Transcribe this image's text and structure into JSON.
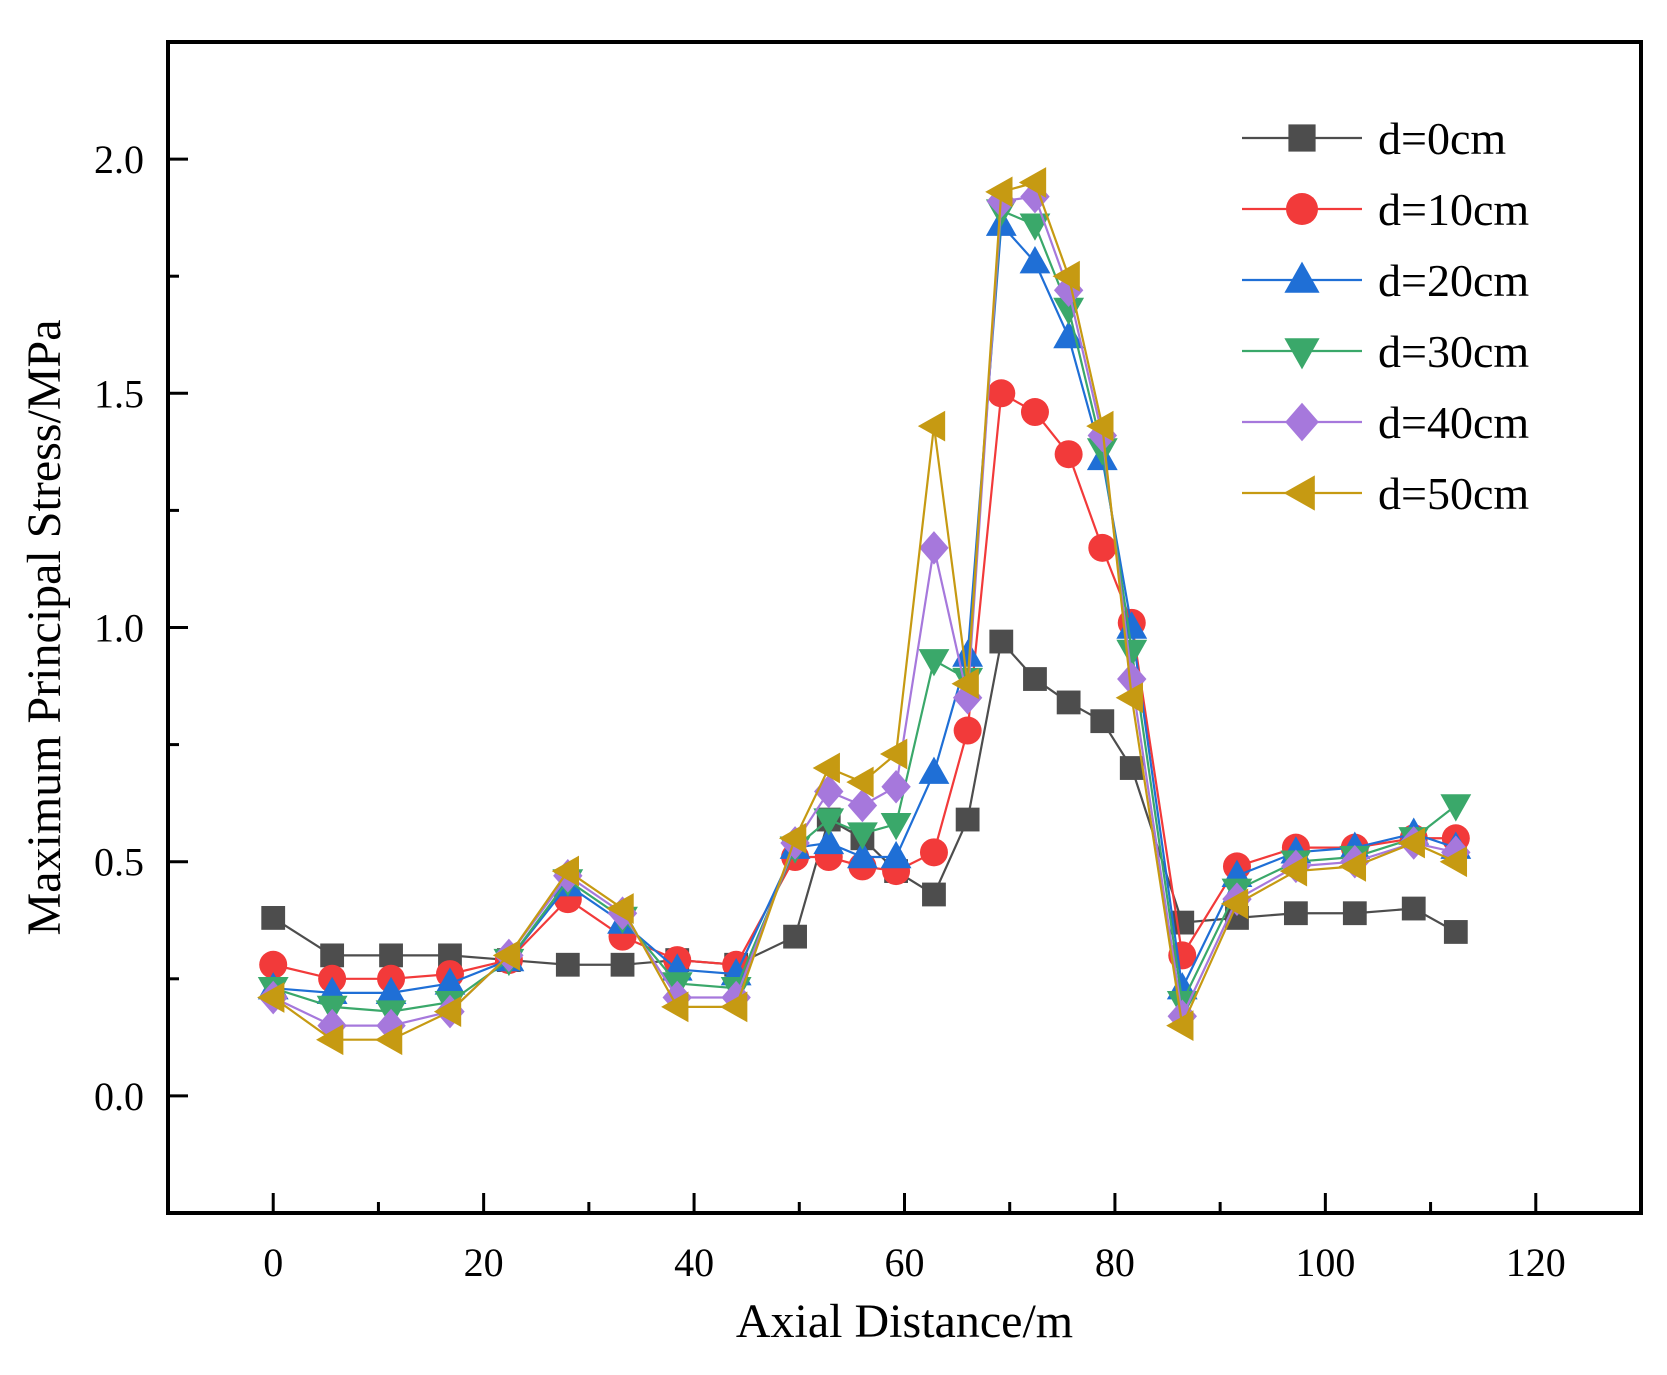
{
  "chart_data": {
    "type": "line",
    "title": "",
    "xlabel": "Axial Distance/m",
    "ylabel": "Maximum Principal Stress/MPa",
    "xlim": [
      -10,
      130
    ],
    "ylim": [
      -0.25,
      2.25
    ],
    "x_ticks": [
      0,
      20,
      40,
      60,
      80,
      100,
      120
    ],
    "x_tick_labels": [
      "0",
      "20",
      "40",
      "60",
      "80",
      "100",
      "120"
    ],
    "y_ticks": [
      0.0,
      0.5,
      1.0,
      1.5,
      2.0
    ],
    "y_tick_labels": [
      "0.0",
      "0.5",
      "1.0",
      "1.5",
      "2.0"
    ],
    "grid": false,
    "legend_position": "top-right",
    "series": [
      {
        "name": "d=0cm",
        "color": "#4d4d4d",
        "marker": "square",
        "x": [
          0,
          5.6,
          11.2,
          16.8,
          22.4,
          28,
          33.2,
          38.4,
          44,
          49.6,
          52.8,
          56,
          59.2,
          62.8,
          66,
          69.2,
          72.4,
          75.6,
          78.8,
          81.6,
          86.4,
          91.6,
          97.2,
          102.8,
          108.4,
          112.4
        ],
        "values": [
          0.38,
          0.3,
          0.3,
          0.3,
          0.29,
          0.28,
          0.28,
          0.29,
          0.28,
          0.34,
          0.59,
          0.55,
          0.48,
          0.43,
          0.59,
          0.97,
          0.89,
          0.84,
          0.8,
          0.7,
          0.37,
          0.38,
          0.39,
          0.39,
          0.4,
          0.35
        ]
      },
      {
        "name": "d=10cm",
        "color": "#f23a3a",
        "marker": "circle",
        "x": [
          0,
          5.6,
          11.2,
          16.8,
          22.4,
          28,
          33.2,
          38.4,
          44,
          49.6,
          52.8,
          56,
          59.2,
          62.8,
          66,
          69.2,
          72.4,
          75.6,
          78.8,
          81.6,
          86.4,
          91.6,
          97.2,
          102.8,
          108.4,
          112.4
        ],
        "values": [
          0.28,
          0.25,
          0.25,
          0.26,
          0.29,
          0.42,
          0.34,
          0.29,
          0.28,
          0.51,
          0.51,
          0.49,
          0.48,
          0.52,
          0.78,
          1.5,
          1.46,
          1.37,
          1.17,
          1.01,
          0.3,
          0.49,
          0.53,
          0.53,
          0.55,
          0.55
        ]
      },
      {
        "name": "d=20cm",
        "color": "#1f6fd6",
        "marker": "triangle-up",
        "x": [
          0,
          5.6,
          11.2,
          16.8,
          22.4,
          28,
          33.2,
          38.4,
          44,
          49.6,
          52.8,
          56,
          59.2,
          62.8,
          66,
          69.2,
          72.4,
          75.6,
          78.8,
          81.6,
          86.4,
          91.6,
          97.2,
          102.8,
          108.4,
          112.4
        ],
        "values": [
          0.23,
          0.22,
          0.22,
          0.24,
          0.29,
          0.45,
          0.37,
          0.27,
          0.26,
          0.53,
          0.54,
          0.51,
          0.51,
          0.69,
          0.94,
          1.86,
          1.78,
          1.62,
          1.36,
          1.0,
          0.23,
          0.47,
          0.52,
          0.53,
          0.56,
          0.53
        ]
      },
      {
        "name": "d=30cm",
        "color": "#3aa86a",
        "marker": "triangle-down",
        "x": [
          0,
          5.6,
          11.2,
          16.8,
          22.4,
          28,
          33.2,
          38.4,
          44,
          49.6,
          52.8,
          56,
          59.2,
          62.8,
          66,
          69.2,
          72.4,
          75.6,
          78.8,
          81.6,
          86.4,
          91.6,
          97.2,
          102.8,
          108.4,
          112.4
        ],
        "values": [
          0.23,
          0.19,
          0.18,
          0.2,
          0.29,
          0.46,
          0.38,
          0.24,
          0.23,
          0.53,
          0.59,
          0.56,
          0.58,
          0.93,
          0.89,
          1.89,
          1.86,
          1.68,
          1.38,
          0.95,
          0.2,
          0.44,
          0.5,
          0.51,
          0.55,
          0.62
        ]
      },
      {
        "name": "d=40cm",
        "color": "#a678dc",
        "marker": "diamond",
        "x": [
          0,
          5.6,
          11.2,
          16.8,
          22.4,
          28,
          33.2,
          38.4,
          44,
          49.6,
          52.8,
          56,
          59.2,
          62.8,
          66,
          69.2,
          72.4,
          75.6,
          78.8,
          81.6,
          86.4,
          91.6,
          97.2,
          102.8,
          108.4,
          112.4
        ],
        "values": [
          0.21,
          0.15,
          0.15,
          0.18,
          0.3,
          0.47,
          0.39,
          0.21,
          0.21,
          0.54,
          0.65,
          0.62,
          0.66,
          1.17,
          0.85,
          1.91,
          1.92,
          1.72,
          1.41,
          0.89,
          0.17,
          0.42,
          0.49,
          0.5,
          0.54,
          0.52
        ]
      },
      {
        "name": "d=50cm",
        "color": "#c69a12",
        "marker": "triangle-left",
        "x": [
          0,
          5.6,
          11.2,
          16.8,
          22.4,
          28,
          33.2,
          38.4,
          44,
          49.6,
          52.8,
          56,
          59.2,
          62.8,
          66,
          69.2,
          72.4,
          75.6,
          78.8,
          81.6,
          86.4,
          91.6,
          97.2,
          102.8,
          108.4,
          112.4
        ],
        "values": [
          0.21,
          0.12,
          0.12,
          0.18,
          0.3,
          0.48,
          0.4,
          0.19,
          0.19,
          0.55,
          0.7,
          0.67,
          0.73,
          1.43,
          0.88,
          1.93,
          1.95,
          1.75,
          1.43,
          0.85,
          0.15,
          0.41,
          0.48,
          0.49,
          0.54,
          0.5
        ]
      }
    ]
  }
}
